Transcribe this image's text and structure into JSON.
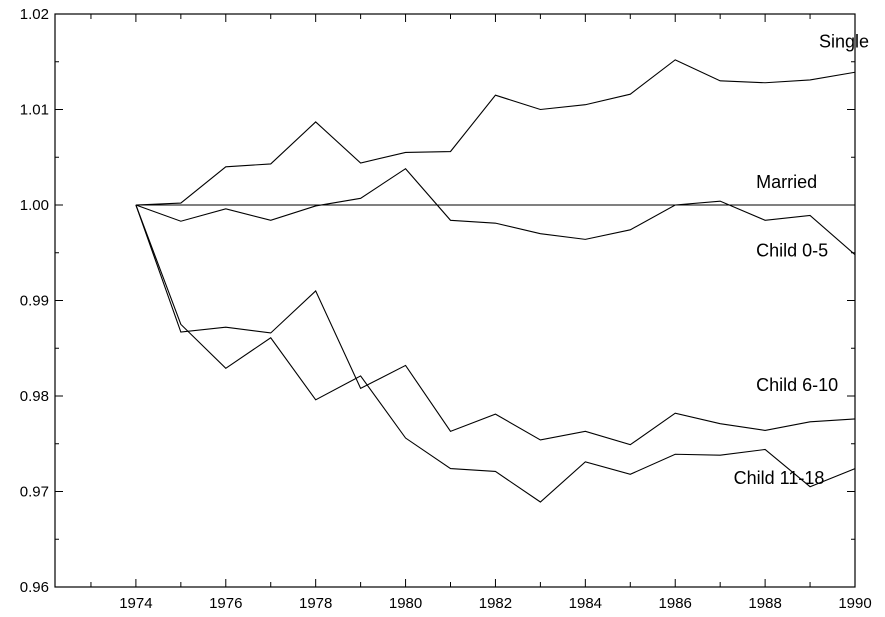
{
  "chart_data": {
    "type": "line",
    "title": "",
    "xlabel": "",
    "ylabel": "",
    "xlim": [
      1972.2,
      1990
    ],
    "ylim": [
      0.96,
      1.02
    ],
    "grid": false,
    "x": [
      1974,
      1975,
      1976,
      1977,
      1978,
      1979,
      1980,
      1981,
      1982,
      1983,
      1984,
      1985,
      1986,
      1987,
      1988,
      1989,
      1990
    ],
    "x_ticks": [
      "1974",
      "1976",
      "1978",
      "1980",
      "1982",
      "1984",
      "1986",
      "1988",
      "1990"
    ],
    "x_tick_values": [
      1974,
      1976,
      1978,
      1980,
      1982,
      1984,
      1986,
      1988,
      1990
    ],
    "y_ticks": [
      "0.96",
      "0.97",
      "0.98",
      "0.99",
      "1.00",
      "1.01",
      "1.02"
    ],
    "y_tick_values": [
      0.96,
      0.97,
      0.98,
      0.99,
      1.0,
      1.01,
      1.02
    ],
    "series": [
      {
        "name": "Single",
        "label_x": 1989.2,
        "label_y": 1.0165,
        "values": [
          1.0,
          1.0002,
          1.004,
          1.0043,
          1.0087,
          1.0044,
          1.0055,
          1.0056,
          1.0115,
          1.01,
          1.0105,
          1.0116,
          1.0152,
          1.013,
          1.0128,
          1.0131,
          1.0139
        ]
      },
      {
        "name": "Married",
        "label_x": 1987.8,
        "label_y": 1.0018,
        "values": [
          1.0,
          1.0,
          1.0,
          1.0,
          1.0,
          1.0,
          1.0,
          1.0,
          1.0,
          1.0,
          1.0,
          1.0,
          1.0,
          1.0,
          1.0,
          1.0,
          1.0
        ]
      },
      {
        "name": "Child 0-5",
        "label_x": 1987.8,
        "label_y": 0.9946,
        "values": [
          1.0,
          0.9983,
          0.9996,
          0.9984,
          0.9999,
          1.0007,
          1.0038,
          0.9984,
          0.9981,
          0.997,
          0.9964,
          0.9974,
          1.0,
          1.0004,
          0.9984,
          0.9989,
          0.9948
        ]
      },
      {
        "name": "Child 6-10",
        "label_x": 1987.8,
        "label_y": 0.9805,
        "values": [
          1.0,
          0.9867,
          0.9872,
          0.9866,
          0.991,
          0.9808,
          0.9832,
          0.9763,
          0.9781,
          0.9754,
          0.9763,
          0.9749,
          0.9782,
          0.9771,
          0.9764,
          0.9773,
          0.9776
        ]
      },
      {
        "name": "Child 11-18",
        "label_x": 1987.3,
        "label_y": 0.9708,
        "values": [
          1.0,
          0.9875,
          0.9829,
          0.9861,
          0.9796,
          0.9821,
          0.9756,
          0.9724,
          0.9721,
          0.9689,
          0.9731,
          0.9718,
          0.9739,
          0.9738,
          0.9744,
          0.9705,
          0.9724
        ]
      }
    ]
  }
}
